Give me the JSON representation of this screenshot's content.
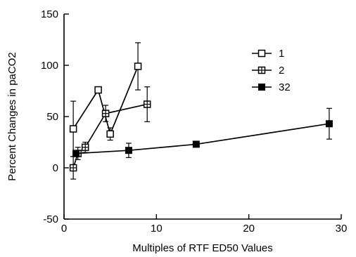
{
  "chart_data": {
    "type": "line",
    "xlabel": "Multiples of RTF ED50 Values",
    "ylabel": "Percent Changes in paCO2",
    "xlim": [
      0,
      30
    ],
    "ylim": [
      -50,
      150
    ],
    "x_ticks": [
      0,
      10,
      20,
      30
    ],
    "y_ticks": [
      -50,
      0,
      50,
      100,
      150
    ],
    "grid": false,
    "legend_position": "right",
    "series": [
      {
        "name": "1",
        "marker": "open-square",
        "points": [
          {
            "x": 1,
            "y": 38,
            "err": 27
          },
          {
            "x": 3.7,
            "y": 76,
            "err": 3
          },
          {
            "x": 5,
            "y": 33,
            "err": 6
          },
          {
            "x": 8,
            "y": 99,
            "err": 23
          }
        ]
      },
      {
        "name": "2",
        "marker": "hatched-square",
        "points": [
          {
            "x": 1,
            "y": 0,
            "err": 11
          },
          {
            "x": 1.5,
            "y": 14,
            "err": 6
          },
          {
            "x": 2.3,
            "y": 20,
            "err": 5
          },
          {
            "x": 4.5,
            "y": 53,
            "err": 8
          },
          {
            "x": 9,
            "y": 62,
            "err": 17
          }
        ]
      },
      {
        "name": "32",
        "marker": "filled-square",
        "points": [
          {
            "x": 1.3,
            "y": 14,
            "err": 0
          },
          {
            "x": 7,
            "y": 17,
            "err": 7
          },
          {
            "x": 14.3,
            "y": 23,
            "err": 0
          },
          {
            "x": 28.7,
            "y": 43,
            "err": 15
          }
        ]
      }
    ]
  }
}
